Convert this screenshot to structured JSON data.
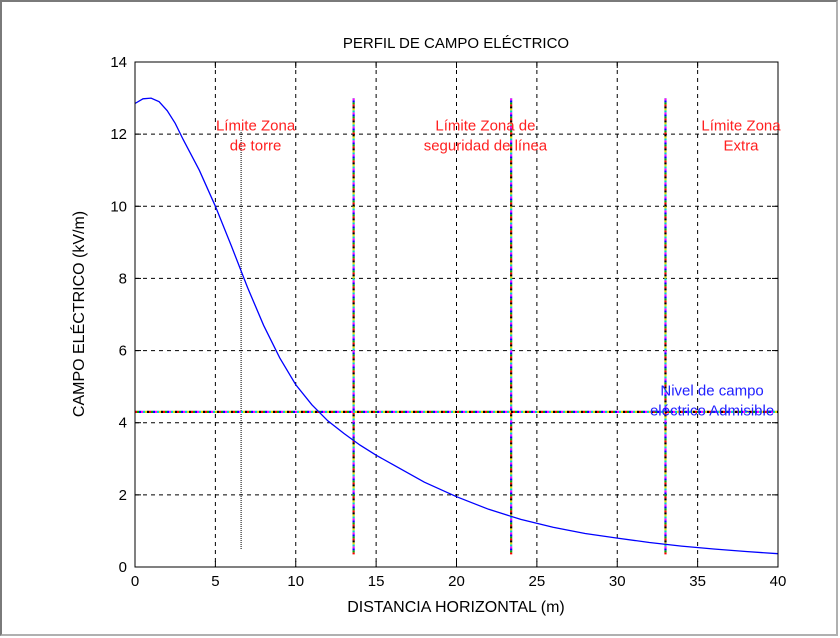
{
  "chart_data": {
    "type": "line",
    "title": "PERFIL DE CAMPO ELÉCTRICO",
    "xlabel": "DISTANCIA HORIZONTAL (m)",
    "ylabel": "CAMPO ELÉCTRICO (kV/m)",
    "xlim": [
      0,
      40
    ],
    "ylim": [
      0,
      14
    ],
    "xticks": [
      0,
      5,
      10,
      15,
      20,
      25,
      30,
      35,
      40
    ],
    "yticks": [
      0,
      2,
      4,
      6,
      8,
      10,
      12,
      14
    ],
    "grid": true,
    "series": [
      {
        "color": "#0000ff",
        "x": [
          0,
          0.5,
          1,
          1.5,
          2,
          2.5,
          3,
          4,
          5,
          6,
          7,
          8,
          9,
          10,
          11,
          12,
          13,
          14,
          15,
          16,
          18,
          20,
          22,
          24,
          26,
          28,
          30,
          32,
          34,
          36,
          38,
          40
        ],
        "y": [
          12.85,
          12.98,
          13.0,
          12.9,
          12.65,
          12.3,
          11.85,
          11.0,
          10.0,
          8.9,
          7.75,
          6.7,
          5.8,
          5.05,
          4.5,
          4.05,
          3.7,
          3.38,
          3.1,
          2.85,
          2.35,
          1.95,
          1.6,
          1.32,
          1.1,
          0.93,
          0.8,
          0.68,
          0.58,
          0.5,
          0.43,
          0.37
        ]
      }
    ],
    "vertical_markers": [
      {
        "x": 6.6,
        "y_from": 0.5,
        "y_to": 12.1,
        "style": "dotted",
        "color": "#000000"
      },
      {
        "x": 13.6,
        "y_from": 0.35,
        "y_to": 13.0,
        "style": "multicolor-dotted"
      },
      {
        "x": 23.4,
        "y_from": 0.35,
        "y_to": 13.0,
        "style": "multicolor-dotted"
      },
      {
        "x": 33.0,
        "y_from": 0.35,
        "y_to": 13.0,
        "style": "multicolor-dotted"
      }
    ],
    "horizontal_marker": {
      "y": 4.3,
      "style": "multicolor-dotted"
    },
    "annotations": [
      {
        "lines": [
          "Límite Zona",
          "de torre"
        ],
        "x": 7.5,
        "y": 12.1,
        "color": "#ff2020"
      },
      {
        "lines": [
          "Límite Zona de",
          "seguridad de línea"
        ],
        "x": 21.8,
        "y": 12.1,
        "color": "#ff2020"
      },
      {
        "lines": [
          "Límite Zona",
          "Extra"
        ],
        "x": 37.7,
        "y": 12.1,
        "color": "#ff2020"
      },
      {
        "lines": [
          "Nivel de campo",
          "eléctrico Admisible"
        ],
        "x": 35.9,
        "y": 4.75,
        "color": "#2020ff"
      }
    ]
  }
}
